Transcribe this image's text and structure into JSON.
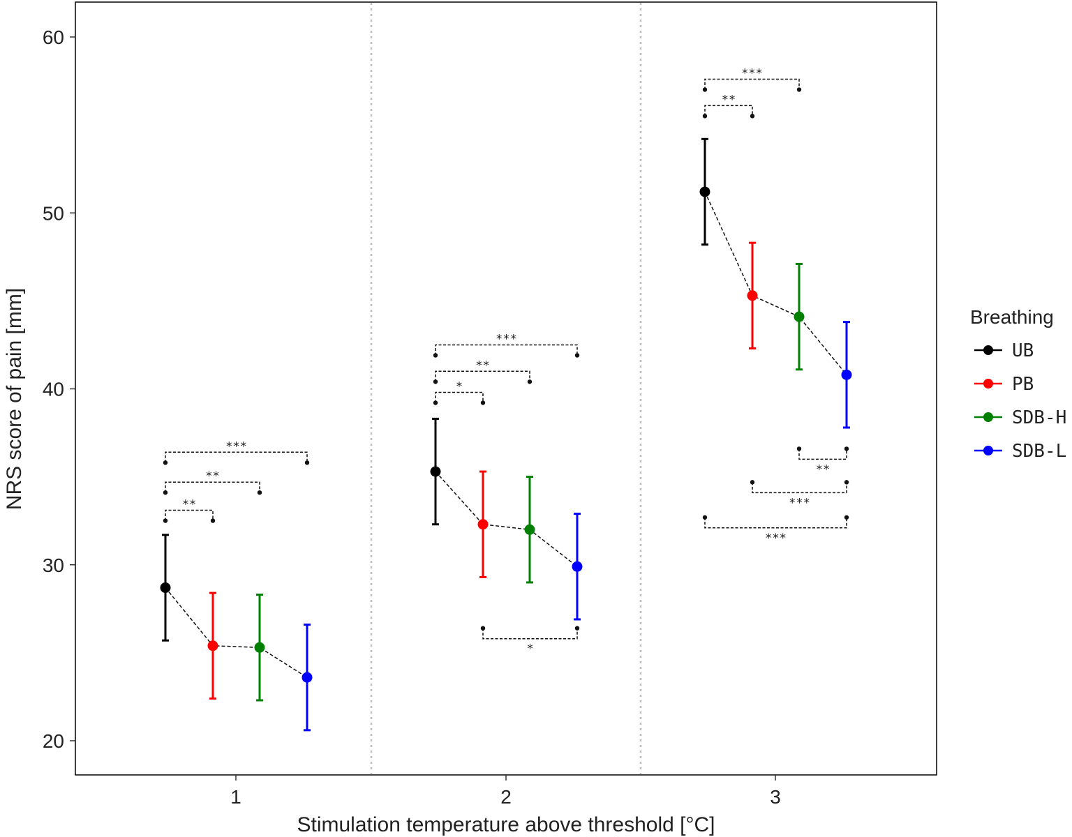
{
  "chart_data": {
    "type": "line",
    "title": "",
    "xlabel": "Stimulation temperature above threshold [°C]",
    "ylabel": "NRS score of pain [mm]",
    "categories": [
      "1",
      "2",
      "3"
    ],
    "ylim": [
      18,
      62
    ],
    "yticks": [
      "20",
      "30",
      "40",
      "50",
      "60"
    ],
    "legend_title": "Breathing",
    "legend_position": "right",
    "series": [
      {
        "name": "UB",
        "color": "#000000",
        "values": [
          28.7,
          35.3,
          51.2
        ],
        "lower": [
          25.7,
          32.3,
          48.2
        ],
        "upper": [
          31.7,
          38.3,
          54.2
        ]
      },
      {
        "name": "PB",
        "color": "#ff0000",
        "values": [
          25.4,
          32.3,
          45.3
        ],
        "lower": [
          22.4,
          29.3,
          42.3
        ],
        "upper": [
          28.4,
          35.3,
          48.3
        ]
      },
      {
        "name": "SDB-H",
        "color": "#008000",
        "values": [
          25.3,
          32.0,
          44.1
        ],
        "lower": [
          22.3,
          29.0,
          41.1
        ],
        "upper": [
          28.3,
          35.0,
          47.1
        ]
      },
      {
        "name": "SDB-L",
        "color": "#0000ff",
        "values": [
          23.6,
          29.9,
          40.8
        ],
        "lower": [
          20.6,
          26.9,
          37.8
        ],
        "upper": [
          26.6,
          32.9,
          43.8
        ]
      }
    ],
    "comparisons": [
      {
        "group": 1,
        "a": "UB",
        "b": "PB",
        "label": "**",
        "side": "above",
        "level": 33.1
      },
      {
        "group": 1,
        "a": "UB",
        "b": "SDB-H",
        "label": "**",
        "side": "above",
        "level": 34.7
      },
      {
        "group": 1,
        "a": "UB",
        "b": "SDB-L",
        "label": "***",
        "side": "above",
        "level": 36.4
      },
      {
        "group": 2,
        "a": "UB",
        "b": "PB",
        "label": "*",
        "side": "above",
        "level": 39.8
      },
      {
        "group": 2,
        "a": "UB",
        "b": "SDB-H",
        "label": "**",
        "side": "above",
        "level": 41.0
      },
      {
        "group": 2,
        "a": "UB",
        "b": "SDB-L",
        "label": "***",
        "side": "above",
        "level": 42.5
      },
      {
        "group": 2,
        "a": "PB",
        "b": "SDB-L",
        "label": "*",
        "side": "below",
        "level": 25.8
      },
      {
        "group": 3,
        "a": "UB",
        "b": "PB",
        "label": "**",
        "side": "above",
        "level": 56.1
      },
      {
        "group": 3,
        "a": "UB",
        "b": "SDB-H",
        "label": "***",
        "side": "above",
        "level": 57.6
      },
      {
        "group": 3,
        "a": "SDB-H",
        "b": "SDB-L",
        "label": "**",
        "side": "below",
        "level": 36.0
      },
      {
        "group": 3,
        "a": "PB",
        "b": "SDB-L",
        "label": "***",
        "side": "below",
        "level": 34.1
      },
      {
        "group": 3,
        "a": "UB",
        "b": "SDB-L",
        "label": "***",
        "side": "below",
        "level": 32.1
      }
    ]
  }
}
